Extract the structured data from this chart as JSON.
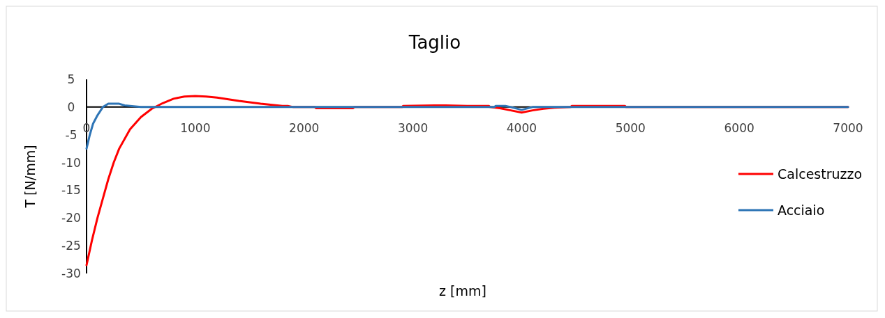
{
  "chart_data": {
    "type": "line",
    "title": "Taglio",
    "xlabel": "z [mm]",
    "ylabel": "T [N/mm]",
    "xlim": [
      0,
      7000
    ],
    "xticks": [
      0,
      1000,
      2000,
      3000,
      4000,
      5000,
      6000,
      7000
    ],
    "ylim": [
      -30,
      5
    ],
    "yticks": [
      -30,
      -25,
      -20,
      -15,
      -10,
      -5,
      0,
      5
    ],
    "grid": false,
    "legend": "right",
    "marker": "none",
    "line_style": "solid",
    "series": [
      {
        "name": "Calcestruzzo",
        "color": "#ff0000",
        "x": [
          0,
          50,
          100,
          150,
          200,
          250,
          300,
          400,
          500,
          600,
          700,
          800,
          900,
          1000,
          1100,
          1200,
          1400,
          1600,
          1800,
          1850,
          1900,
          2100,
          2110,
          2450,
          2460,
          2900,
          2910,
          3200,
          3300,
          3500,
          3700,
          3710,
          3800,
          3900,
          4000,
          4100,
          4200,
          4300,
          4450,
          4460,
          4950,
          4960,
          7000
        ],
        "values": [
          -28.5,
          -24,
          -20,
          -16.5,
          -13,
          -10,
          -7.5,
          -4,
          -1.8,
          -0.3,
          0.7,
          1.5,
          1.9,
          2,
          1.9,
          1.7,
          1.1,
          0.6,
          0.2,
          0.2,
          0,
          0,
          -0.2,
          -0.2,
          0,
          0,
          0.2,
          0.3,
          0.3,
          0.2,
          0.2,
          0,
          -0.2,
          -0.6,
          -1,
          -0.6,
          -0.3,
          -0.1,
          0,
          0.2,
          0.2,
          0,
          0
        ]
      },
      {
        "name": "Acciaio",
        "color": "#2e75b6",
        "x": [
          0,
          30,
          60,
          100,
          150,
          200,
          250,
          300,
          350,
          450,
          500,
          3750,
          3760,
          3850,
          3900,
          4000,
          4100,
          4110,
          7000
        ],
        "values": [
          -7.5,
          -5,
          -3,
          -1.5,
          0,
          0.6,
          0.6,
          0.6,
          0.3,
          0.1,
          0,
          0,
          0.2,
          0.2,
          0,
          -0.5,
          0,
          0,
          0
        ]
      }
    ]
  }
}
